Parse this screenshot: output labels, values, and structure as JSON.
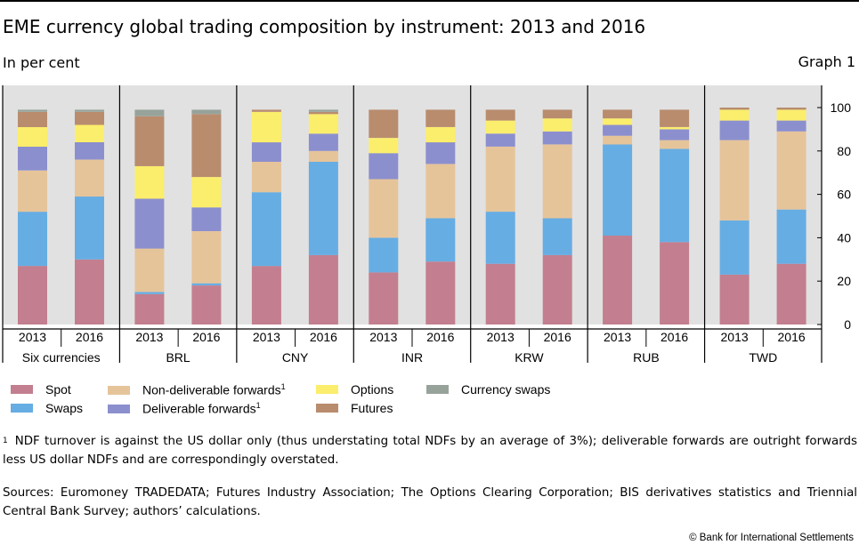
{
  "title": "EME currency global trading composition by instrument: 2013 and 2016",
  "subtitle": "In per cent",
  "graph_number": "Graph 1",
  "legend": [
    {
      "label": "Spot",
      "sup": "",
      "color": "#c37f8f"
    },
    {
      "label": "Swaps",
      "sup": "",
      "color": "#66ade3"
    },
    {
      "label": "Non-deliverable forwards",
      "sup": "1",
      "color": "#e6c49a"
    },
    {
      "label": "Deliverable forwards",
      "sup": "1",
      "color": "#8c8fce"
    },
    {
      "label": "Options",
      "sup": "",
      "color": "#fbee6c"
    },
    {
      "label": "Futures",
      "sup": "",
      "color": "#b98c6e"
    },
    {
      "label": "Currency swaps",
      "sup": "",
      "color": "#97a39a"
    }
  ],
  "footnote": {
    "marker": "1",
    "text": "NDF turnover is against the US dollar only (thus understating total NDFs by an average of 3%); deliverable forwards are outright forwards less US dollar NDFs and are correspondingly overstated."
  },
  "sources": "Sources: Euromoney TRADEDATA; Futures Industry Association; The Options Clearing Corporation; BIS derivatives statistics and Triennial Central Bank Survey; authors’ calculations.",
  "copyright": "© Bank for International Settlements",
  "chart_data": {
    "type": "bar",
    "stacked": true,
    "ylim": [
      0,
      100
    ],
    "yticks": [
      0,
      20,
      40,
      60,
      80,
      100
    ],
    "y_axis_side": "right",
    "grid": false,
    "legend_position": "bottom",
    "groups": [
      {
        "name": "Six currencies",
        "bars": [
          {
            "year": "2013",
            "values": [
              27,
              25,
              19,
              11,
              9,
              7,
              1
            ]
          },
          {
            "year": "2016",
            "values": [
              30,
              29,
              17,
              8,
              8,
              6,
              1
            ]
          }
        ]
      },
      {
        "name": "BRL",
        "bars": [
          {
            "year": "2013",
            "values": [
              14,
              1,
              20,
              23,
              15,
              23,
              3
            ]
          },
          {
            "year": "2016",
            "values": [
              18,
              1,
              24,
              11,
              14,
              29,
              2
            ]
          }
        ]
      },
      {
        "name": "CNY",
        "bars": [
          {
            "year": "2013",
            "values": [
              27,
              34,
              14,
              9,
              14,
              1,
              0
            ]
          },
          {
            "year": "2016",
            "values": [
              32,
              43,
              5,
              8,
              9,
              1,
              1
            ]
          }
        ]
      },
      {
        "name": "INR",
        "bars": [
          {
            "year": "2013",
            "values": [
              24,
              16,
              27,
              12,
              7,
              13,
              0
            ]
          },
          {
            "year": "2016",
            "values": [
              29,
              20,
              25,
              10,
              7,
              8,
              0
            ]
          }
        ]
      },
      {
        "name": "KRW",
        "bars": [
          {
            "year": "2013",
            "values": [
              28,
              24,
              30,
              6,
              6,
              5,
              0
            ]
          },
          {
            "year": "2016",
            "values": [
              32,
              17,
              34,
              6,
              6,
              4,
              0
            ]
          }
        ]
      },
      {
        "name": "RUB",
        "bars": [
          {
            "year": "2013",
            "values": [
              41,
              42,
              4,
              5,
              3,
              4,
              0
            ]
          },
          {
            "year": "2016",
            "values": [
              38,
              43,
              4,
              5,
              1,
              8,
              0
            ]
          }
        ]
      },
      {
        "name": "TWD",
        "bars": [
          {
            "year": "2013",
            "values": [
              23,
              25,
              37,
              9,
              5,
              1,
              0
            ]
          },
          {
            "year": "2016",
            "values": [
              28,
              25,
              36,
              5,
              5,
              1,
              0
            ]
          }
        ]
      }
    ]
  }
}
